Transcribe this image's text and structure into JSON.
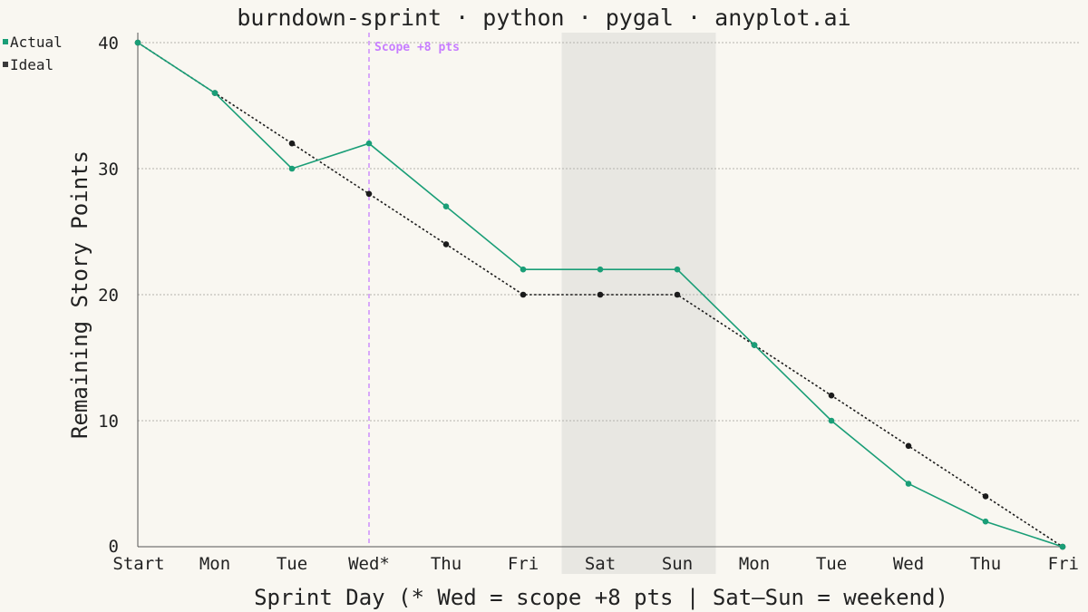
{
  "chart_data": {
    "type": "line",
    "title": "burndown-sprint · python · pygal · anyplot.ai",
    "xlabel": "Sprint Day (* Wed = scope +8 pts | Sat–Sun = weekend)",
    "ylabel": "Remaining Story Points",
    "categories": [
      "Start",
      "Mon",
      "Tue",
      "Wed*",
      "Thu",
      "Fri",
      "Sat",
      "Sun",
      "Mon",
      "Tue",
      "Wed",
      "Thu",
      "Fri"
    ],
    "ylim": [
      0,
      40
    ],
    "yticks": [
      0,
      10,
      20,
      30,
      40
    ],
    "grid": true,
    "legend_position": "top-left",
    "series": [
      {
        "name": "Actual",
        "color": "#1a9e77",
        "style": "solid",
        "values": [
          40,
          36,
          30,
          32,
          27,
          22,
          22,
          22,
          16,
          10,
          5,
          2,
          0
        ]
      },
      {
        "name": "Ideal",
        "color": "#1b1b1b",
        "style": "dotted",
        "values": [
          40,
          36,
          32,
          28,
          24,
          20,
          20,
          20,
          16,
          12,
          8,
          4,
          0
        ]
      }
    ],
    "annotations": [
      {
        "type": "vertical-line",
        "category_index": 3,
        "label": "Scope +8 pts",
        "color": "#c77dff"
      }
    ],
    "shaded_regions": [
      {
        "from_index": 6,
        "to_index": 7,
        "color": "#e8e7e2",
        "meaning": "weekend"
      }
    ]
  }
}
